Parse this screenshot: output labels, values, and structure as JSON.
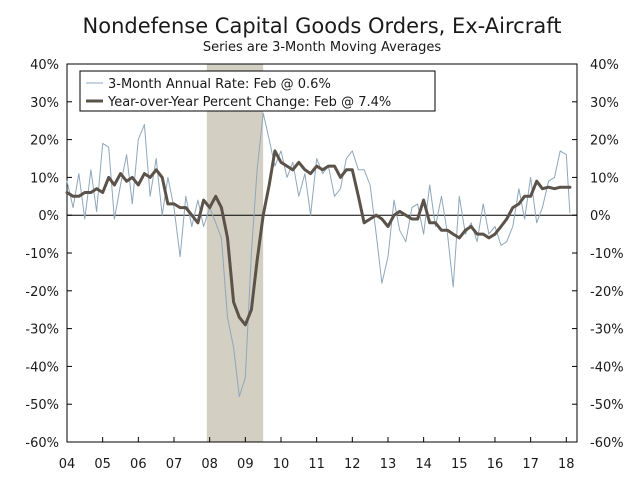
{
  "chart_data": {
    "type": "line",
    "title": "Nondefense Capital Goods Orders, Ex-Aircraft",
    "subtitle": "Series are 3-Month Moving Averages",
    "y_ticks": [
      "40%",
      "30%",
      "20%",
      "10%",
      "0%",
      "-10%",
      "-20%",
      "-30%",
      "-40%",
      "-50%",
      "-60%"
    ],
    "y_tick_values": [
      40,
      30,
      20,
      10,
      0,
      -10,
      -20,
      -30,
      -40,
      -50,
      -60
    ],
    "ylim": [
      -60,
      40
    ],
    "x_ticks": [
      "04",
      "05",
      "06",
      "07",
      "08",
      "09",
      "10",
      "11",
      "12",
      "13",
      "14",
      "15",
      "16",
      "17",
      "18"
    ],
    "xlim": [
      2004.0,
      2018.3
    ],
    "grid": false,
    "legend_placement": "top-left",
    "recession_shading": {
      "start": 2007.92,
      "end": 2009.5,
      "color": "#d3cfc3"
    },
    "series": [
      {
        "name": "3-Month Annual Rate: Feb @ 0.6%",
        "color": "#8fa7bb",
        "stroke": "thin",
        "x": [
          2004.0,
          2004.17,
          2004.33,
          2004.5,
          2004.67,
          2004.83,
          2005.0,
          2005.17,
          2005.33,
          2005.5,
          2005.67,
          2005.83,
          2006.0,
          2006.17,
          2006.33,
          2006.5,
          2006.67,
          2006.83,
          2007.0,
          2007.17,
          2007.33,
          2007.5,
          2007.67,
          2007.83,
          2008.0,
          2008.17,
          2008.33,
          2008.5,
          2008.67,
          2008.83,
          2009.0,
          2009.17,
          2009.33,
          2009.5,
          2009.67,
          2009.83,
          2010.0,
          2010.17,
          2010.33,
          2010.5,
          2010.67,
          2010.83,
          2011.0,
          2011.17,
          2011.33,
          2011.5,
          2011.67,
          2011.83,
          2012.0,
          2012.17,
          2012.33,
          2012.5,
          2012.67,
          2012.83,
          2013.0,
          2013.17,
          2013.33,
          2013.5,
          2013.67,
          2013.83,
          2014.0,
          2014.17,
          2014.33,
          2014.5,
          2014.67,
          2014.83,
          2015.0,
          2015.17,
          2015.33,
          2015.5,
          2015.67,
          2015.83,
          2016.0,
          2016.17,
          2016.33,
          2016.5,
          2016.67,
          2016.83,
          2017.0,
          2017.17,
          2017.33,
          2017.5,
          2017.67,
          2017.83,
          2018.0,
          2018.1
        ],
        "values": [
          9,
          2,
          11,
          -1,
          12,
          1,
          19,
          18,
          -1,
          8,
          16,
          3,
          20,
          24,
          5,
          15,
          0,
          10,
          2,
          -11,
          5,
          -3,
          4,
          -3,
          2,
          -2,
          -6,
          -27,
          -35,
          -48,
          -43,
          -10,
          12,
          27,
          20,
          13,
          17,
          10,
          14,
          5,
          11,
          0,
          15,
          11,
          13,
          5,
          7,
          15,
          17,
          12,
          12,
          8,
          -5,
          -18,
          -11,
          4,
          -4,
          -7,
          2,
          3,
          -5,
          8,
          -3,
          5,
          -5,
          -19,
          5,
          -5,
          -2,
          -7,
          3,
          -5,
          -3,
          -8,
          -7,
          -3,
          7,
          -1,
          10,
          -2,
          2,
          9,
          10,
          17,
          16,
          0.6
        ]
      },
      {
        "name": "Year-over-Year Percent Change: Feb @ 7.4%",
        "color": "#5b524a",
        "stroke": "thick",
        "x": [
          2004.0,
          2004.17,
          2004.33,
          2004.5,
          2004.67,
          2004.83,
          2005.0,
          2005.17,
          2005.33,
          2005.5,
          2005.67,
          2005.83,
          2006.0,
          2006.17,
          2006.33,
          2006.5,
          2006.67,
          2006.83,
          2007.0,
          2007.17,
          2007.33,
          2007.5,
          2007.67,
          2007.83,
          2008.0,
          2008.17,
          2008.33,
          2008.5,
          2008.67,
          2008.83,
          2009.0,
          2009.17,
          2009.33,
          2009.5,
          2009.67,
          2009.83,
          2010.0,
          2010.17,
          2010.33,
          2010.5,
          2010.67,
          2010.83,
          2011.0,
          2011.17,
          2011.33,
          2011.5,
          2011.67,
          2011.83,
          2012.0,
          2012.17,
          2012.33,
          2012.5,
          2012.67,
          2012.83,
          2013.0,
          2013.17,
          2013.33,
          2013.5,
          2013.67,
          2013.83,
          2014.0,
          2014.17,
          2014.33,
          2014.5,
          2014.67,
          2014.83,
          2015.0,
          2015.17,
          2015.33,
          2015.5,
          2015.67,
          2015.83,
          2016.0,
          2016.17,
          2016.33,
          2016.5,
          2016.67,
          2016.83,
          2017.0,
          2017.17,
          2017.33,
          2017.5,
          2017.67,
          2017.83,
          2018.0,
          2018.1
        ],
        "values": [
          6,
          5,
          5,
          6,
          6,
          7,
          6,
          10,
          8,
          11,
          9,
          10,
          8,
          11,
          10,
          12,
          10,
          3,
          3,
          2,
          2,
          0,
          -2,
          4,
          2,
          5,
          2,
          -6,
          -23,
          -27,
          -29,
          -25,
          -12,
          0,
          8,
          17,
          14,
          13,
          12,
          14,
          12,
          11,
          13,
          12,
          13,
          13,
          10,
          12,
          12,
          5,
          -2,
          -1,
          0,
          -1,
          -3,
          0,
          1,
          0,
          -1,
          -1,
          4,
          -2,
          -2,
          -4,
          -4,
          -5,
          -6,
          -4,
          -3,
          -5,
          -5,
          -6,
          -5,
          -3,
          -1,
          2,
          3,
          5,
          5,
          9,
          7,
          7.4,
          7,
          7.4,
          7.4,
          7.4
        ]
      }
    ]
  }
}
